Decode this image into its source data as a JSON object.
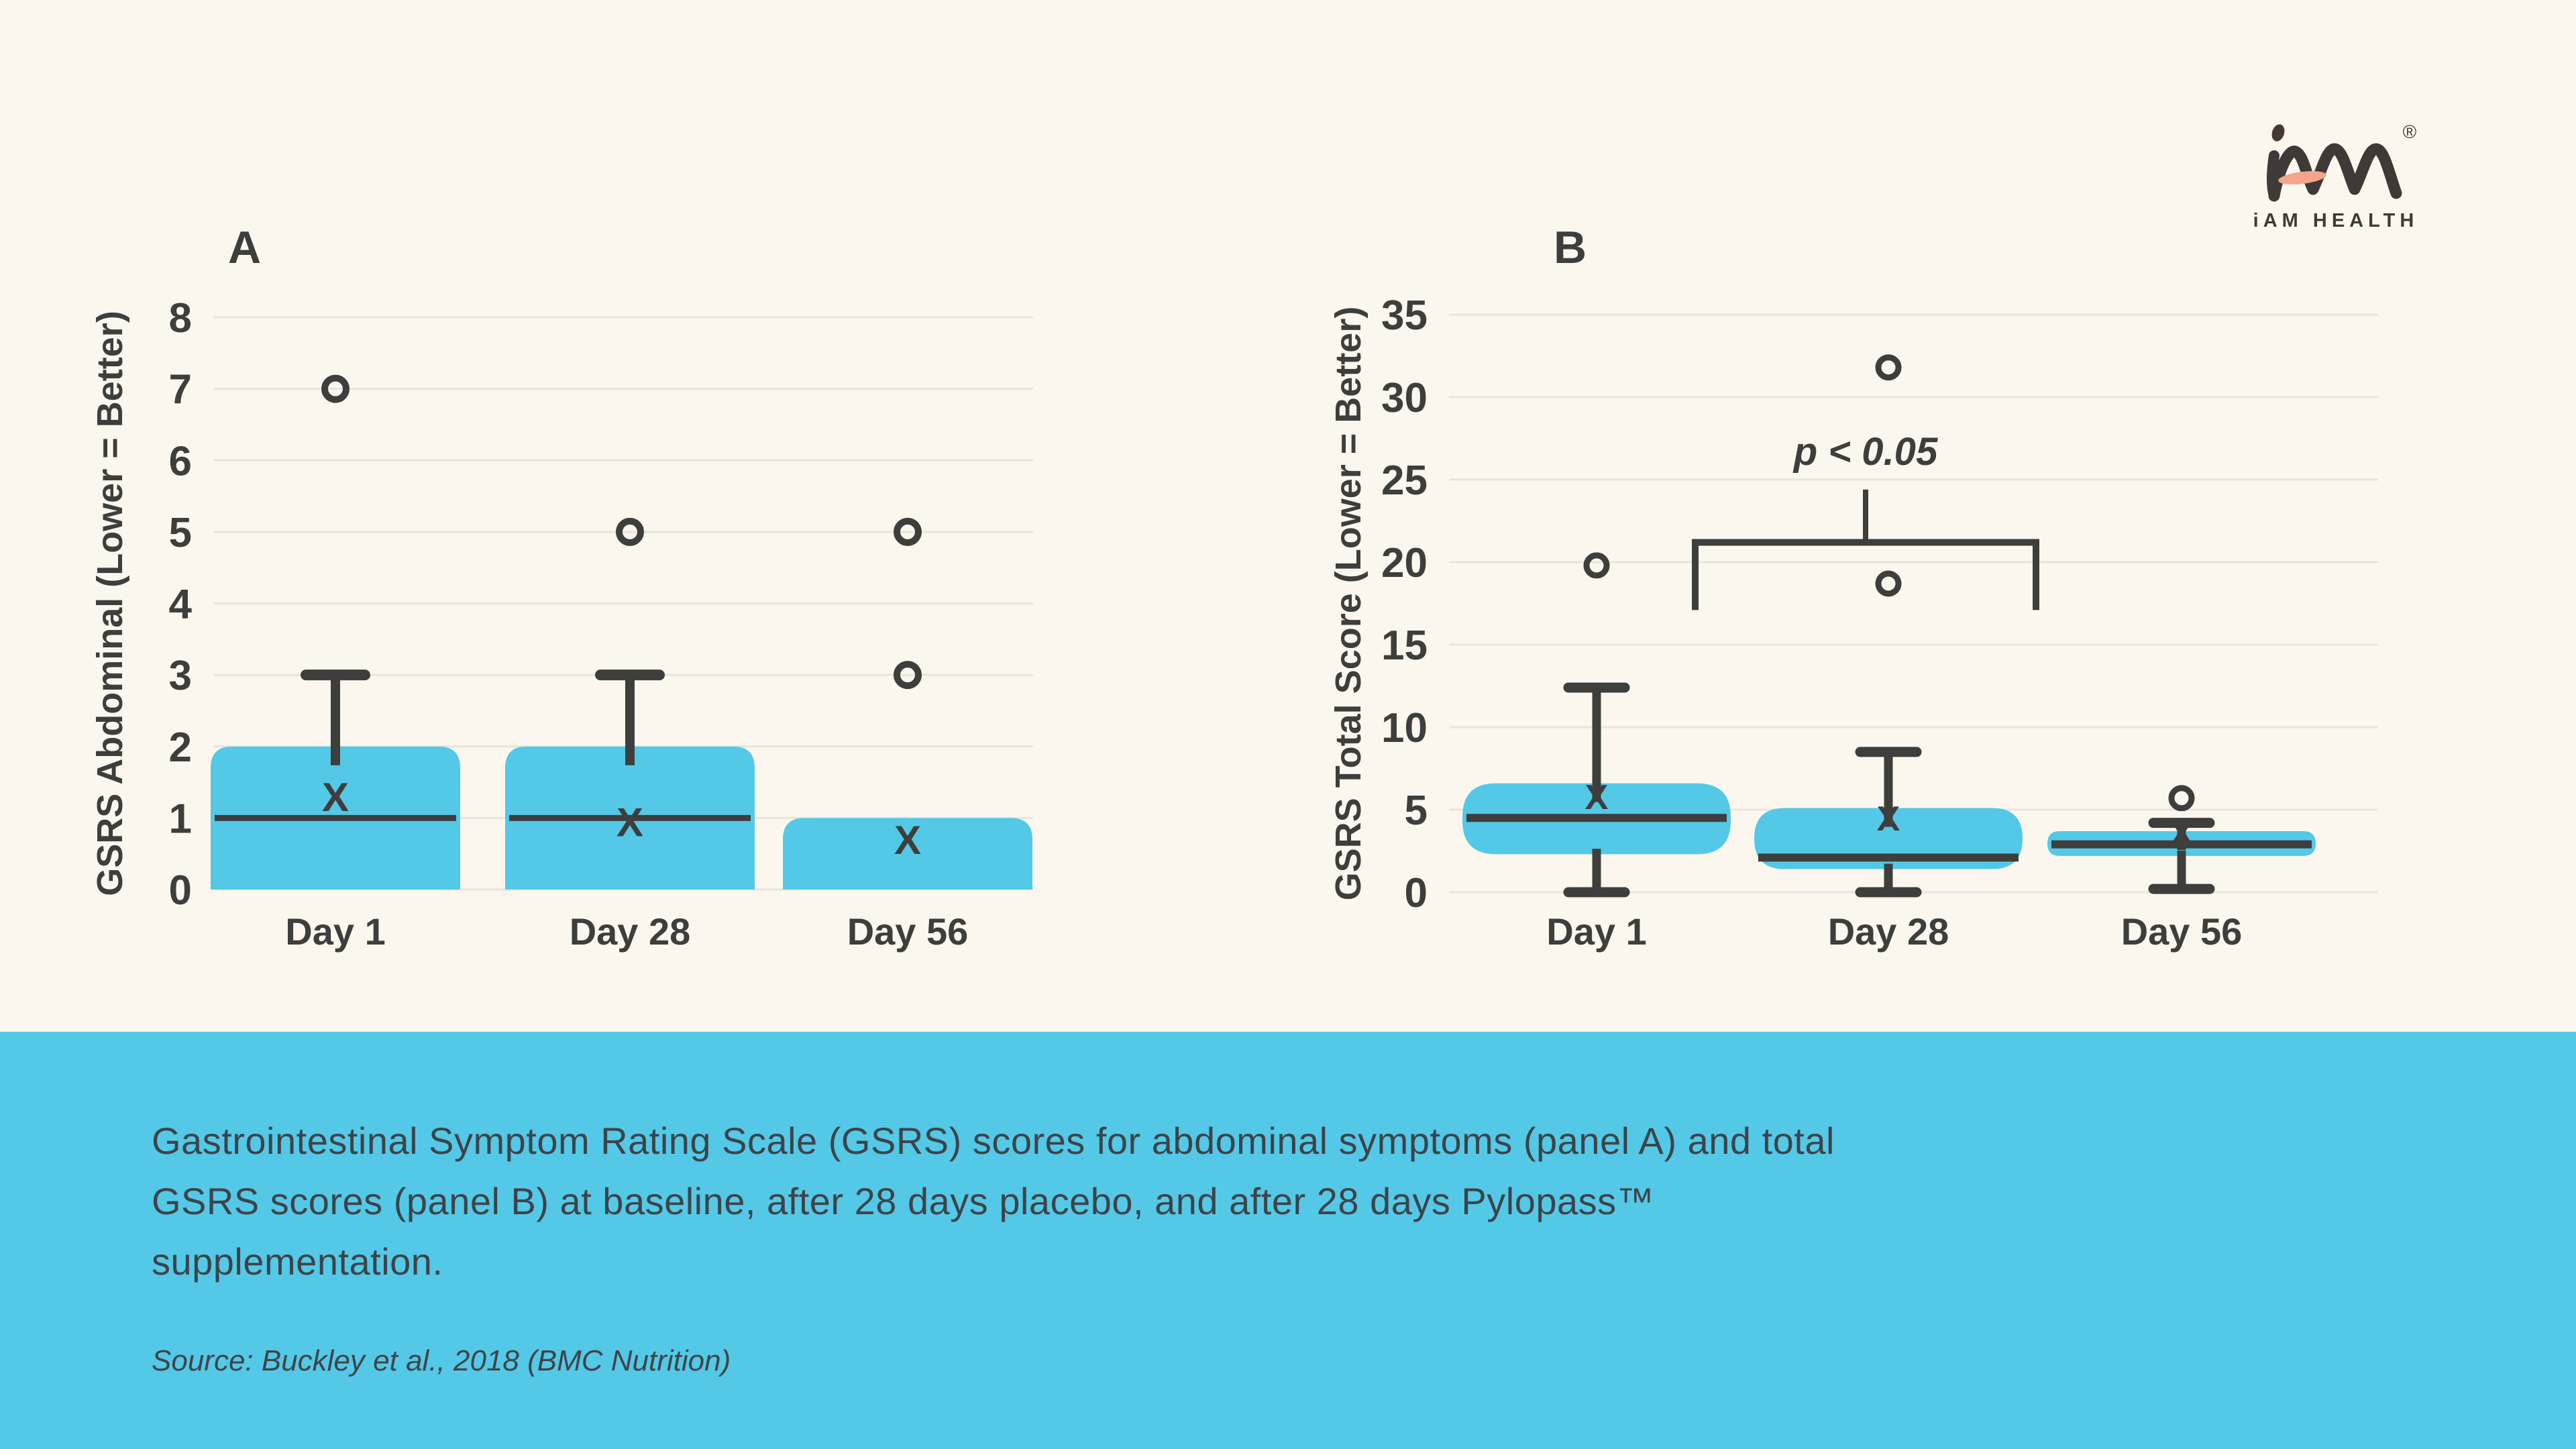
{
  "page": {
    "background": "#FBF7EE",
    "accent_cyan": "#54C8E7",
    "text_dark": "#3E3E3C",
    "gridline_color": "#E9E5DB",
    "caption_text_color": "#3D4449"
  },
  "logo": {
    "brand": "iAM HEALTH",
    "registered_mark": "®",
    "accent_peach": "#F4A58B",
    "mark_color": "#3F3A37"
  },
  "caption": {
    "lines": [
      "Gastrointestinal Symptom Rating Scale (GSRS) scores for abdominal symptoms (panel A) and total",
      "GSRS scores (panel B) at baseline, after 28 days placebo, and after 28 days Pylopass™",
      "supplementation."
    ],
    "source": "Source: Buckley et al., 2018 (BMC Nutrition)"
  },
  "chart_data": [
    {
      "id": "panel-a",
      "type": "box",
      "panel_label": "A",
      "ylabel": "GSRS Abdominal (Lower = Better)",
      "ylim": [
        0,
        8
      ],
      "ytick_step": 1,
      "grid": true,
      "categories": [
        "Day 1",
        "Day 28",
        "Day 56"
      ],
      "boxes": [
        {
          "category": "Day 1",
          "q1": 0,
          "median": 1,
          "q3": 2,
          "whisker_low": null,
          "whisker_high": 3,
          "mean": 1.3,
          "outliers": [
            7
          ]
        },
        {
          "category": "Day 28",
          "q1": 0,
          "median": 1,
          "q3": 2,
          "whisker_low": null,
          "whisker_high": 3,
          "mean": 0.95,
          "outliers": [
            5
          ]
        },
        {
          "category": "Day 56",
          "q1": 0,
          "median": null,
          "q3": 1,
          "whisker_low": null,
          "whisker_high": null,
          "mean": 0.7,
          "outliers": [
            5,
            3
          ]
        }
      ]
    },
    {
      "id": "panel-b",
      "type": "box",
      "panel_label": "B",
      "ylabel": "GSRS Total Score (Lower = Better)",
      "ylim": [
        0,
        35
      ],
      "ytick_step": 5,
      "grid": true,
      "categories": [
        "Day 1",
        "Day 28",
        "Day 56"
      ],
      "boxes": [
        {
          "category": "Day 1",
          "q1": 2.3,
          "median": 4.5,
          "q3": 6.6,
          "whisker_low": 0,
          "whisker_high": 12.4,
          "mean": 5.8,
          "outliers": [
            19.8
          ]
        },
        {
          "category": "Day 28",
          "q1": 1.4,
          "median": 2.1,
          "q3": 5.1,
          "whisker_low": 0,
          "whisker_high": 8.5,
          "mean": 4.5,
          "outliers": [
            31.8,
            18.7
          ]
        },
        {
          "category": "Day 56",
          "q1": 2.2,
          "median": 2.9,
          "q3": 3.7,
          "whisker_low": 0.2,
          "whisker_high": 4.2,
          "mean": 3.6,
          "outliers": [
            5.7
          ]
        }
      ],
      "significance": {
        "label": "p < 0.05",
        "compares": [
          "Day 28 placebo",
          "Day 28 Pylopass"
        ],
        "bar_value": 21.2,
        "leg_bottom_value": 17.1,
        "stem_top_value": 24.4,
        "text_value": 25.9
      }
    }
  ]
}
